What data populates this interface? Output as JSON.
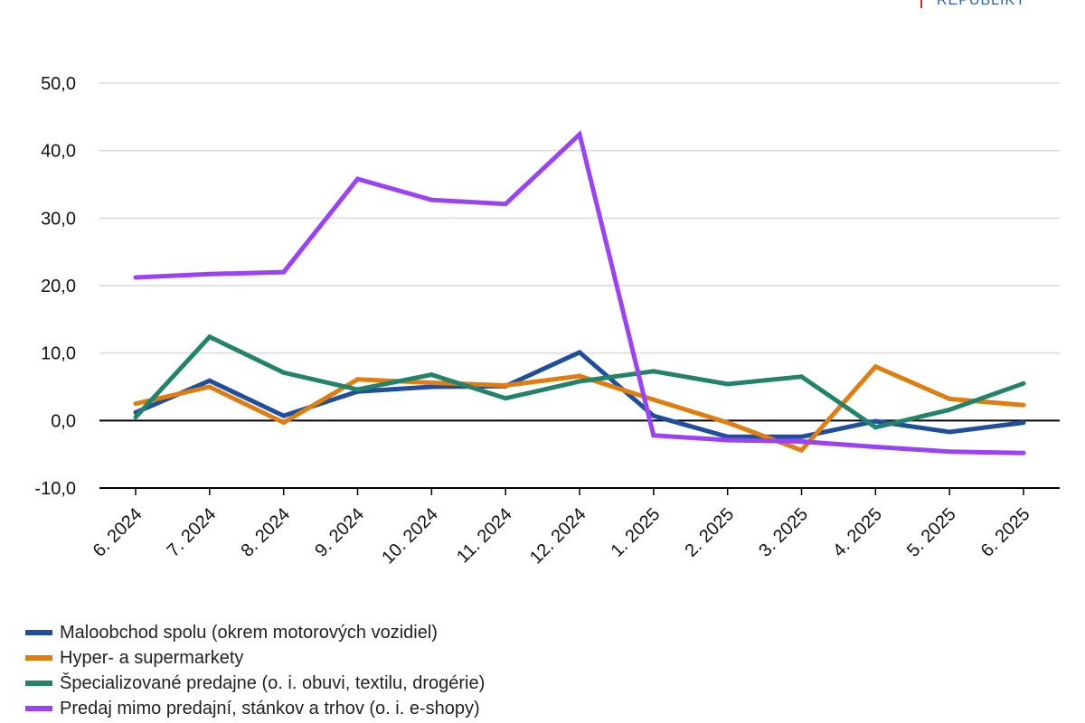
{
  "branding": {
    "logo_text": "REPUBLIKY"
  },
  "chart_data": {
    "type": "line",
    "title": "",
    "xlabel": "",
    "ylabel": "",
    "ylim": [
      -10,
      50
    ],
    "yticks": [
      "50,0",
      "40,0",
      "30,0",
      "20,0",
      "10,0",
      "0,0",
      "-10,0"
    ],
    "ytick_values": [
      50,
      40,
      30,
      20,
      10,
      0,
      -10
    ],
    "grid": true,
    "legend_position": "bottom-left",
    "categories": [
      "6. 2024",
      "7. 2024",
      "8. 2024",
      "9. 2024",
      "10. 2024",
      "11. 2024",
      "12. 2024",
      "1. 2025",
      "2. 2025",
      "3. 2025",
      "4. 2025",
      "5. 2025",
      "6. 2025"
    ],
    "series": [
      {
        "name": "Maloobchod spolu (okrem motorových vozidiel)",
        "color": "#1f4e9c",
        "values": [
          1.2,
          5.9,
          0.7,
          4.3,
          5.0,
          5.1,
          10.1,
          0.7,
          -2.4,
          -2.4,
          -0.1,
          -1.7,
          -0.3
        ]
      },
      {
        "name": "Hyper- a supermarkety",
        "color": "#e07d10",
        "values": [
          2.5,
          5.0,
          -0.3,
          6.1,
          5.6,
          5.2,
          6.6,
          3.1,
          -0.3,
          -4.4,
          8.0,
          3.2,
          2.3
        ]
      },
      {
        "name": "Špecializované predajne (o. i. obuvi, textilu, drogérie)",
        "color": "#23836a",
        "values": [
          0.5,
          12.4,
          7.1,
          4.6,
          6.8,
          3.3,
          5.8,
          7.3,
          5.4,
          6.5,
          -1.0,
          1.6,
          5.5
        ]
      },
      {
        "name": "Predaj mimo predajní, stánkov a trhov (o. i. e-shopy)",
        "color": "#9b42f5",
        "values": [
          21.2,
          21.7,
          22.0,
          35.8,
          32.7,
          32.1,
          42.4,
          -2.2,
          -2.9,
          -3.1,
          -3.9,
          -4.6,
          -4.8
        ]
      }
    ]
  }
}
